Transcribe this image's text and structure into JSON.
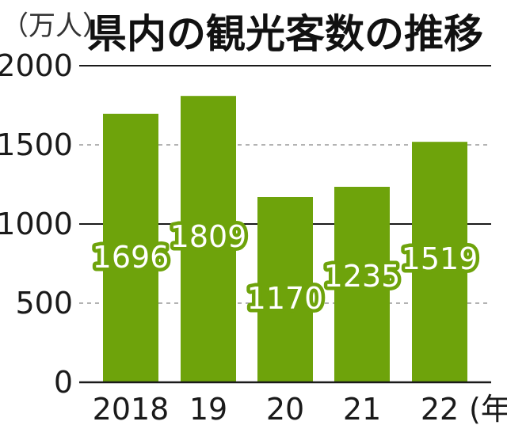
{
  "chart_data": {
    "type": "bar",
    "title": "県内の観光客数の推移",
    "unit_label": "（万人）",
    "x_unit_label": "(年)",
    "categories": [
      "2018",
      "19",
      "20",
      "21",
      "22"
    ],
    "values": [
      1696,
      1809,
      1170,
      1235,
      1519
    ],
    "value_labels": [
      "1696",
      "1809",
      "1170",
      "1235",
      "1519"
    ],
    "ylim": [
      0,
      2000
    ],
    "yticks": [
      0,
      500,
      1000,
      1500,
      2000
    ],
    "ytick_labels": [
      "0",
      "500",
      "1000",
      "1500",
      "2000"
    ],
    "solid_gridlines": [
      1000,
      2000
    ],
    "dashed_gridlines": [
      500,
      1500
    ],
    "bar_color": "#6ea30b",
    "label_outline_color": "#6ea30b"
  }
}
